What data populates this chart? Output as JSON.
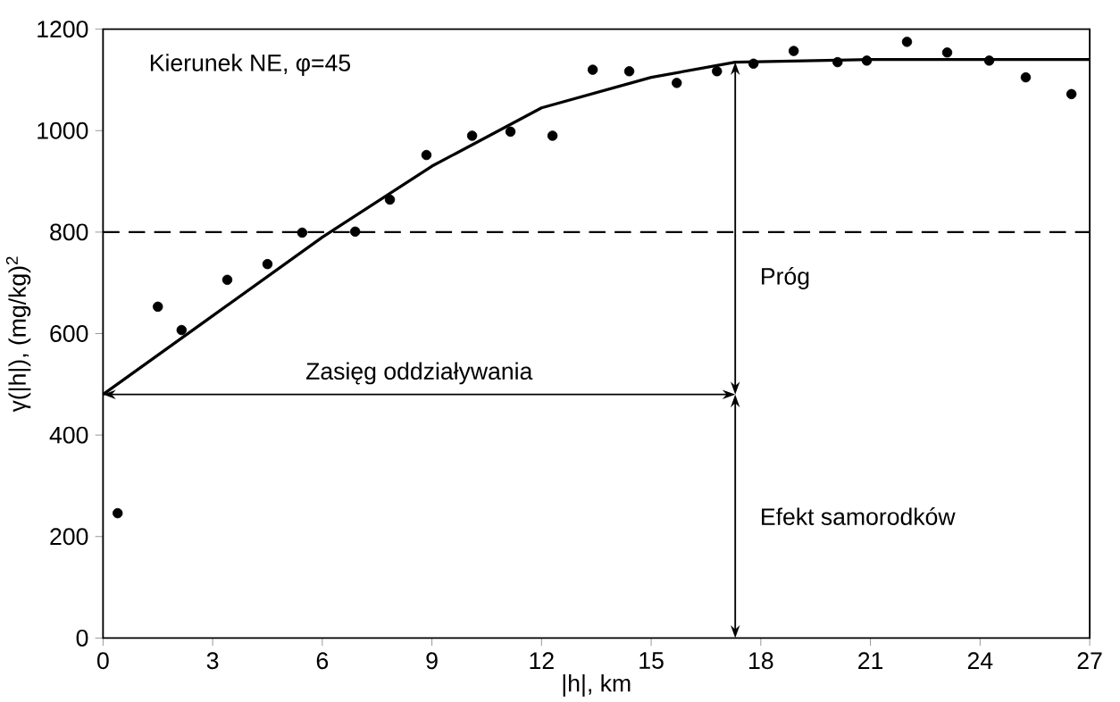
{
  "chart_data": {
    "type": "scatter",
    "title": "Kierunek NE, φ=45",
    "xlabel": "|h|, km",
    "ylabel": "γ(|h|), (mg/kg)$^{2}$",
    "xlim": [
      0,
      27
    ],
    "xticks": [
      0,
      3,
      6,
      9,
      12,
      15,
      18,
      21,
      24,
      27
    ],
    "ylim": [
      0,
      1200
    ],
    "yticks": [
      0,
      200,
      400,
      600,
      800,
      1000,
      1200
    ],
    "grid": false,
    "series": [
      {
        "marker": "circle",
        "color": "#000000",
        "x": [
          0.4,
          1.5,
          2.15,
          3.4,
          4.5,
          5.45,
          6.9,
          7.85,
          8.85,
          10.1,
          11.15,
          12.3,
          13.4,
          14.4,
          15.7,
          16.8,
          17.8,
          18.9,
          20.1,
          20.9,
          22.0,
          23.1,
          24.25,
          25.25,
          26.5
        ],
        "values": [
          246,
          653,
          607,
          706,
          737,
          799,
          801,
          864,
          952,
          990,
          998,
          990,
          1120,
          1117,
          1094,
          1117,
          1132,
          1157,
          1135,
          1138,
          1175,
          1154,
          1138,
          1105,
          1072
        ]
      },
      {
        "type": "line",
        "marker": "none",
        "line_style": "solid",
        "color": "#000000",
        "x": [
          0,
          3,
          6,
          9,
          12,
          15,
          17.3,
          21,
          27
        ],
        "values": [
          480,
          635,
          790,
          930,
          1045,
          1105,
          1135,
          1140,
          1140
        ]
      }
    ],
    "ref_lines": [
      {
        "axis": "y",
        "value": 800,
        "line_style": "dashed",
        "color": "#000000"
      }
    ],
    "annotations": [
      "Zasięg oddziaływania",
      "Próg",
      "Efekt samorodków"
    ]
  }
}
